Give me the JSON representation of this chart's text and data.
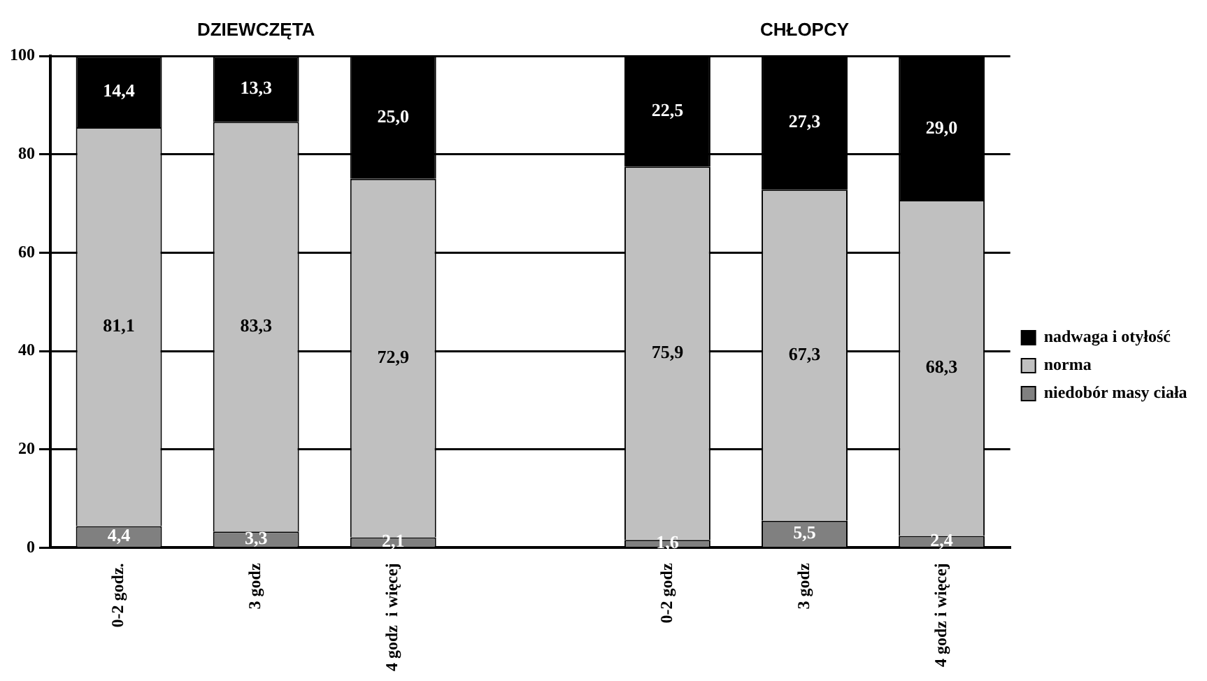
{
  "chart_data": {
    "type": "bar",
    "stacked": true,
    "categories": [
      "0-2 godz.",
      "3 godz",
      "4 godz  i więcej",
      null,
      "0-2 godz",
      "3 godz",
      "4 godz i więcej"
    ],
    "series": [
      {
        "name": "niedobór masy ciała",
        "color": "#808080",
        "values": [
          4.4,
          3.3,
          2.1,
          null,
          1.6,
          5.5,
          2.4
        ],
        "value_labels": [
          "4,4",
          "3,3",
          "2,1",
          null,
          "1,6",
          "5,5",
          "2,4"
        ]
      },
      {
        "name": "norma",
        "color": "#c0c0c0",
        "values": [
          81.1,
          83.3,
          72.9,
          null,
          75.9,
          67.3,
          68.3
        ],
        "value_labels": [
          "81,1",
          "83,3",
          "72,9",
          null,
          "75,9",
          "67,3",
          "68,3"
        ]
      },
      {
        "name": "nadwaga i otyłość",
        "color": "#000000",
        "values": [
          14.4,
          13.3,
          25.0,
          null,
          22.5,
          27.3,
          29.0
        ],
        "value_labels": [
          "14,4",
          "13,3",
          "25,0",
          null,
          "22,5",
          "27,3",
          "29,0"
        ]
      }
    ],
    "ylim": [
      0,
      100
    ],
    "yticks": [
      0,
      20,
      40,
      60,
      80,
      100
    ],
    "grid": "y",
    "legend": "right",
    "annotations": [
      "DZIEWCZĘTA",
      "CHŁOPCY"
    ]
  }
}
